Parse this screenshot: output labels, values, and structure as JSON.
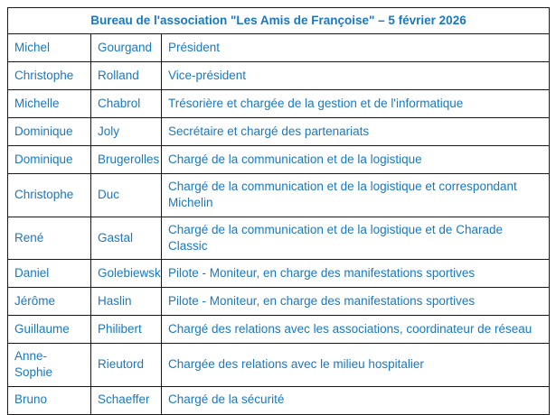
{
  "colors": {
    "text_blue": "#1878c2",
    "border": "#181818",
    "background": "#ffffff"
  },
  "table": {
    "title": "Bureau de l'association \"Les Amis de Françoise\" – 5 février 2026",
    "columns": [
      "first_name",
      "last_name",
      "role"
    ],
    "rows": [
      {
        "first_name": "Michel",
        "last_name": "Gourgand",
        "role": "Président"
      },
      {
        "first_name": "Christophe",
        "last_name": "Rolland",
        "role": "Vice-président"
      },
      {
        "first_name": "Michelle",
        "last_name": "Chabrol",
        "role": "Trésorière et chargée de la gestion et de l'informatique"
      },
      {
        "first_name": "Dominique",
        "last_name": "Joly",
        "role": "Secrétaire et chargé des partenariats"
      },
      {
        "first_name": "Dominique",
        "last_name": "Brugerolles",
        "role": "Chargé de la communication et de la logistique"
      },
      {
        "first_name": "Christophe",
        "last_name": "Duc",
        "role": "Chargé de la communication et de la logistique et correspondant Michelin"
      },
      {
        "first_name": "René",
        "last_name": "Gastal",
        "role": "Chargé de la communication et de la logistique et de Charade Classic"
      },
      {
        "first_name": "Daniel",
        "last_name": "Golebiewski",
        "role": "Pilote - Moniteur, en charge des manifestations sportives"
      },
      {
        "first_name": "Jérôme",
        "last_name": "Haslin",
        "role": "Pilote - Moniteur, en charge des manifestations sportives"
      },
      {
        "first_name": "Guillaume",
        "last_name": "Philibert",
        "role": "Chargé des relations avec les associations, coordinateur de réseau"
      },
      {
        "first_name": "Anne-Sophie",
        "last_name": "Rieutord",
        "role": "Chargée des relations avec le milieu hospitalier"
      },
      {
        "first_name": "Bruno",
        "last_name": "Schaeffer",
        "role": "Chargé de la sécurité"
      }
    ]
  }
}
